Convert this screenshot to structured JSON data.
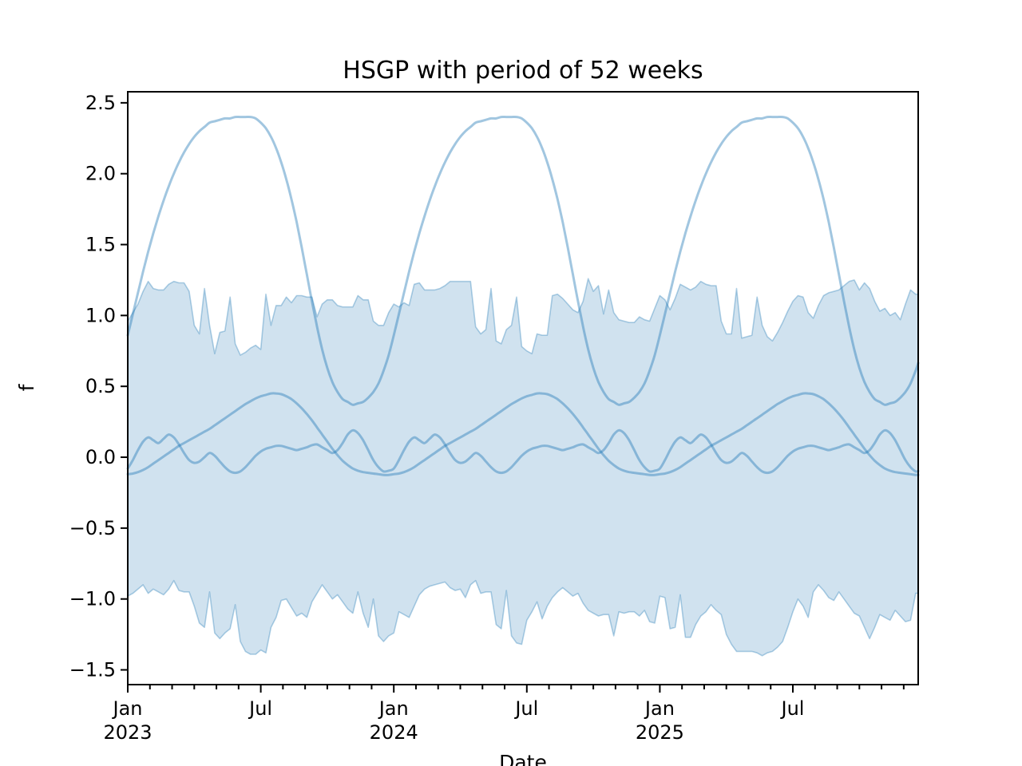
{
  "figure": {
    "title": "HSGP with period of 52 weeks",
    "xlabel": "Date",
    "ylabel": "f",
    "background": "#ffffff",
    "accent_color": "#1f77b4"
  },
  "style": {
    "band_fill": "rgba(31,119,180,0.21)",
    "band_edge": "rgba(31,119,180,0.35)",
    "sample_line": "rgba(31,119,180,0.42)",
    "spine_color": "#000000"
  },
  "chart_data": {
    "type": "line",
    "title": "HSGP with period of 52 weeks",
    "xlabel": "Date",
    "ylabel": "f",
    "x_unit": "weeks since Jan 2023, weekly resolution",
    "period_weeks": 52,
    "n_weeks": 155,
    "xlim_weeks": [
      0,
      154.5
    ],
    "ylim": [
      -1.604,
      2.578
    ],
    "grid": false,
    "legend": "none",
    "y_ticks": [
      2.5,
      2.0,
      1.5,
      1.0,
      0.5,
      0.0,
      -0.5,
      -1.0,
      -1.5
    ],
    "y_tick_labels": [
      "2.5",
      "2.0",
      "1.5",
      "1.0",
      "0.5",
      "0.0",
      "−0.5",
      "−1.0",
      "−1.5"
    ],
    "x_major_ticks": [
      {
        "week": 0,
        "line1": "Jan",
        "line2": "2023"
      },
      {
        "week": 26,
        "line1": "Jul",
        "line2": ""
      },
      {
        "week": 52,
        "line1": "Jan",
        "line2": "2024"
      },
      {
        "week": 78,
        "line1": "Jul",
        "line2": ""
      },
      {
        "week": 104,
        "line1": "Jan",
        "line2": "2025"
      },
      {
        "week": 130,
        "line1": "Jul",
        "line2": ""
      }
    ],
    "x_minor_tick_interval_months": 1,
    "x_months_total": 36,
    "hdi_band": {
      "upper": [
        0.96,
        1.02,
        1.08,
        1.17,
        1.24,
        1.19,
        1.18,
        1.18,
        1.22,
        1.24,
        1.23,
        1.23,
        1.17,
        0.93,
        0.87,
        1.19,
        0.93,
        0.73,
        0.88,
        0.89,
        1.13,
        0.8,
        0.72,
        0.74,
        0.77,
        0.79,
        0.76,
        1.15,
        0.93,
        1.07,
        1.07,
        1.13,
        1.09,
        1.14,
        1.14,
        1.13,
        1.13,
        0.99,
        1.08,
        1.11,
        1.11,
        1.07,
        1.06,
        1.06,
        1.06,
        1.14,
        1.11,
        1.11,
        0.96,
        0.93,
        0.93,
        1.02,
        1.08,
        1.06,
        1.09,
        1.07,
        1.22,
        1.23,
        1.18,
        1.18,
        1.18,
        1.19,
        1.21,
        1.24,
        1.24,
        1.24,
        1.24,
        1.24,
        0.92,
        0.87,
        0.9,
        1.19,
        0.82,
        0.8,
        0.9,
        0.93,
        1.13,
        0.78,
        0.75,
        0.73,
        0.87,
        0.86,
        0.86,
        1.14,
        1.15,
        1.12,
        1.08,
        1.04,
        1.02,
        1.1,
        1.26,
        1.17,
        1.21,
        1.01,
        1.18,
        1.02,
        0.97,
        0.96,
        0.95,
        0.95,
        0.99,
        0.97,
        0.96,
        1.05,
        1.14,
        1.11,
        1.04,
        1.12,
        1.22,
        1.2,
        1.18,
        1.2,
        1.24,
        1.22,
        1.21,
        1.21,
        0.96,
        0.87,
        0.87,
        1.19,
        0.84,
        0.85,
        0.86,
        1.13,
        0.93,
        0.85,
        0.82,
        0.88,
        0.95,
        1.03,
        1.1,
        1.14,
        1.13,
        1.02,
        0.98,
        1.07,
        1.14,
        1.16,
        1.17,
        1.18,
        1.21,
        1.24,
        1.25,
        1.18,
        1.23,
        1.19,
        1.1,
        1.03,
        1.05,
        1.0,
        1.02,
        0.97,
        1.08,
        1.18,
        1.15
      ],
      "lower": [
        -0.98,
        -0.96,
        -0.93,
        -0.9,
        -0.96,
        -0.93,
        -0.95,
        -0.97,
        -0.93,
        -0.87,
        -0.94,
        -0.95,
        -0.95,
        -1.05,
        -1.17,
        -1.2,
        -0.95,
        -1.24,
        -1.28,
        -1.24,
        -1.21,
        -1.04,
        -1.3,
        -1.37,
        -1.39,
        -1.39,
        -1.36,
        -1.38,
        -1.2,
        -1.13,
        -1.01,
        -1.0,
        -1.06,
        -1.12,
        -1.1,
        -1.13,
        -1.02,
        -0.96,
        -0.9,
        -0.95,
        -1.0,
        -0.97,
        -1.02,
        -1.07,
        -1.1,
        -0.95,
        -1.1,
        -1.2,
        -1.0,
        -1.26,
        -1.3,
        -1.26,
        -1.24,
        -1.09,
        -1.11,
        -1.13,
        -1.05,
        -0.97,
        -0.93,
        -0.91,
        -0.9,
        -0.89,
        -0.88,
        -0.92,
        -0.94,
        -0.93,
        -0.99,
        -0.9,
        -0.87,
        -0.96,
        -0.95,
        -0.95,
        -1.18,
        -1.21,
        -0.94,
        -1.26,
        -1.31,
        -1.32,
        -1.15,
        -1.09,
        -1.02,
        -1.14,
        -1.05,
        -0.99,
        -0.95,
        -0.92,
        -0.95,
        -0.98,
        -0.96,
        -1.03,
        -1.08,
        -1.1,
        -1.12,
        -1.11,
        -1.11,
        -1.26,
        -1.09,
        -1.1,
        -1.09,
        -1.09,
        -1.12,
        -1.08,
        -1.16,
        -1.17,
        -0.98,
        -0.99,
        -1.21,
        -1.2,
        -0.97,
        -1.27,
        -1.27,
        -1.18,
        -1.12,
        -1.09,
        -1.04,
        -1.08,
        -1.11,
        -1.25,
        -1.32,
        -1.37,
        -1.37,
        -1.37,
        -1.37,
        -1.38,
        -1.4,
        -1.38,
        -1.37,
        -1.34,
        -1.3,
        -1.2,
        -1.09,
        -1.0,
        -1.05,
        -1.13,
        -0.95,
        -0.9,
        -0.94,
        -0.99,
        -1.01,
        -0.95,
        -1.0,
        -1.05,
        -1.1,
        -1.12,
        -1.2,
        -1.28,
        -1.2,
        -1.11,
        -1.13,
        -1.15,
        -1.08,
        -1.12,
        -1.16,
        -1.15,
        -0.96
      ]
    },
    "samples": [
      {
        "name": "posterior-sample-large",
        "period_values": [
          0.86,
          1.01,
          1.16,
          1.31,
          1.45,
          1.58,
          1.7,
          1.81,
          1.91,
          2.0,
          2.08,
          2.15,
          2.21,
          2.26,
          2.3,
          2.33,
          2.36,
          2.37,
          2.38,
          2.39,
          2.39,
          2.4,
          2.4,
          2.4,
          2.4,
          2.39,
          2.36,
          2.32,
          2.26,
          2.18,
          2.08,
          1.96,
          1.82,
          1.66,
          1.48,
          1.29,
          1.1,
          0.92,
          0.76,
          0.63,
          0.53,
          0.46,
          0.41,
          0.39,
          0.37,
          0.38,
          0.39,
          0.42,
          0.46,
          0.52,
          0.61,
          0.72
        ]
      },
      {
        "name": "posterior-sample-medium",
        "period_values": [
          -0.12,
          -0.115,
          -0.105,
          -0.09,
          -0.07,
          -0.045,
          -0.02,
          0.005,
          0.03,
          0.055,
          0.08,
          0.1,
          0.12,
          0.14,
          0.16,
          0.18,
          0.2,
          0.225,
          0.25,
          0.275,
          0.3,
          0.325,
          0.35,
          0.375,
          0.395,
          0.415,
          0.43,
          0.44,
          0.45,
          0.45,
          0.445,
          0.43,
          0.41,
          0.38,
          0.345,
          0.305,
          0.26,
          0.21,
          0.16,
          0.11,
          0.06,
          0.015,
          -0.025,
          -0.055,
          -0.08,
          -0.095,
          -0.105,
          -0.11,
          -0.115,
          -0.12,
          -0.125,
          -0.125
        ]
      },
      {
        "name": "posterior-sample-wiggly",
        "period_values": [
          -0.08,
          -0.02,
          0.05,
          0.11,
          0.14,
          0.12,
          0.1,
          0.13,
          0.16,
          0.14,
          0.09,
          0.03,
          -0.02,
          -0.04,
          -0.03,
          0.0,
          0.03,
          0.01,
          -0.03,
          -0.07,
          -0.1,
          -0.11,
          -0.1,
          -0.07,
          -0.03,
          0.01,
          0.04,
          0.06,
          0.07,
          0.08,
          0.08,
          0.07,
          0.06,
          0.05,
          0.06,
          0.07,
          0.085,
          0.09,
          0.07,
          0.05,
          0.03,
          0.05,
          0.1,
          0.16,
          0.19,
          0.17,
          0.12,
          0.05,
          -0.02,
          -0.07,
          -0.1,
          -0.095
        ]
      }
    ]
  }
}
